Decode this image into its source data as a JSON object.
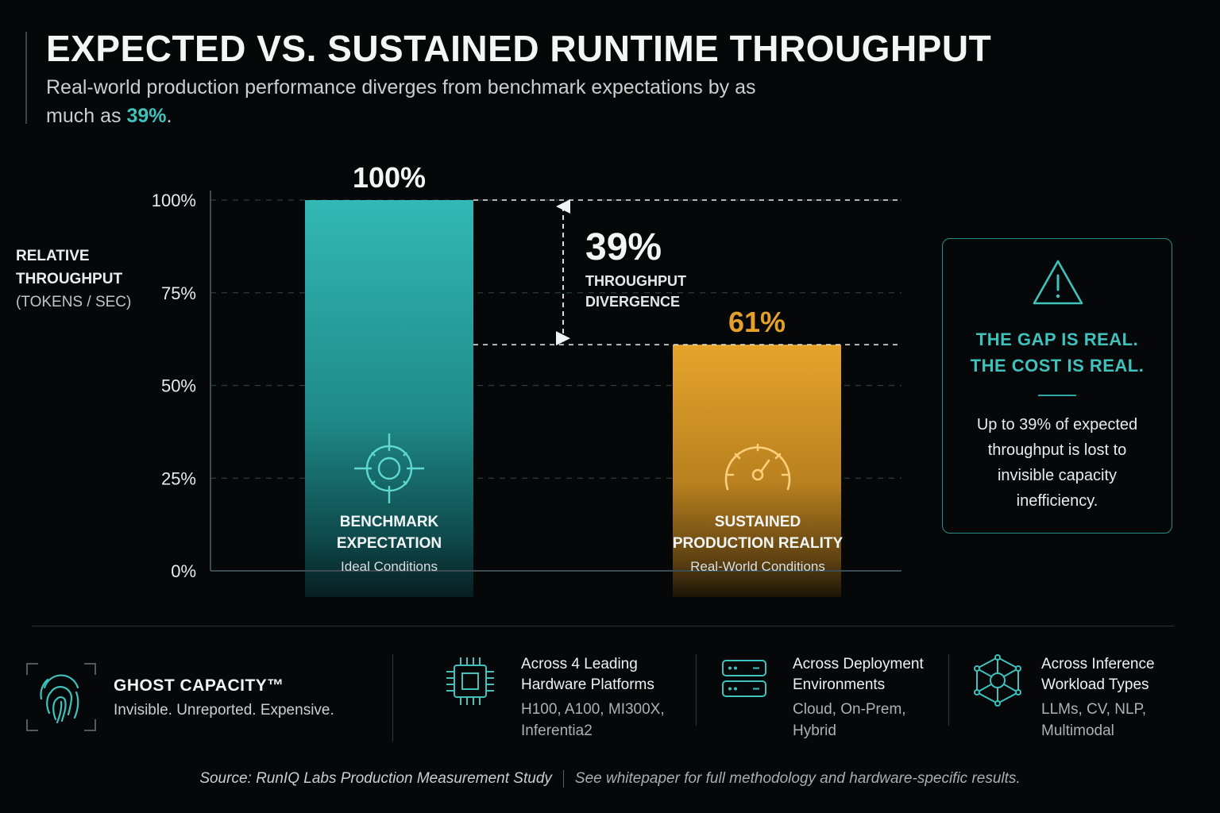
{
  "header": {
    "title": "EXPECTED VS. SUSTAINED RUNTIME THROUGHPUT",
    "subtitle_pre": "Real-world production performance diverges from benchmark expectations by as much as ",
    "subtitle_highlight": "39%",
    "subtitle_post": "."
  },
  "chart_data": {
    "type": "bar",
    "ylabel": [
      "RELATIVE",
      "THROUGHPUT",
      "(TOKENS / SEC)"
    ],
    "ylim": [
      0,
      100
    ],
    "y_ticks": [
      0,
      25,
      50,
      75,
      100
    ],
    "y_tick_labels": [
      "0%",
      "25%",
      "50%",
      "75%",
      "100%"
    ],
    "grid": true,
    "categories": [
      "BENCHMARK EXPECTATION",
      "SUSTAINED PRODUCTION REALITY"
    ],
    "series": [
      {
        "values": [
          100,
          61
        ],
        "value_labels": [
          "100%",
          "61%"
        ]
      }
    ],
    "bars": [
      {
        "line1": "BENCHMARK",
        "line2": "EXPECTATION",
        "condition": "Ideal Conditions",
        "value": 100,
        "value_label": "100%",
        "color": "#2fb3b0",
        "icon": "target-crosshair-icon"
      },
      {
        "line1": "SUSTAINED",
        "line2": "PRODUCTION REALITY",
        "condition": "Real-World Conditions",
        "value": 61,
        "value_label": "61%",
        "color": "#e3a12a",
        "icon": "speedometer-icon"
      }
    ],
    "annotation": {
      "value_label": "39%",
      "line1": "THROUGHPUT",
      "line2": "DIVERGENCE",
      "from": 100,
      "to": 61
    }
  },
  "callout": {
    "icon": "warning-triangle-icon",
    "line1": "THE GAP IS REAL.",
    "line2": "THE COST IS REAL.",
    "body": "Up to 39% of expected throughput is lost to invisible capacity inefficiency."
  },
  "features": {
    "ghost": {
      "icon": "fingerprint-icon",
      "title": "GHOST CAPACITY™",
      "subtitle": "Invisible. Unreported. Expensive."
    },
    "items": [
      {
        "icon": "chip-icon",
        "title": "Across 4 Leading Hardware Platforms",
        "detail": "H100, A100, MI300X, Inferentia2"
      },
      {
        "icon": "server-icon",
        "title": "Across Deployment Environments",
        "detail": "Cloud, On-Prem, Hybrid"
      },
      {
        "icon": "network-cube-icon",
        "title": "Across Inference Workload Types",
        "detail": "LLMs, CV, NLP, Multimodal"
      }
    ]
  },
  "footer": {
    "source": "Source: RunIQ Labs Production Measurement Study",
    "note": "See whitepaper for full methodology and hardware-specific results."
  },
  "colors": {
    "accent_teal": "#3fc1bc",
    "accent_gold": "#e3a12a",
    "background": "#050708"
  }
}
